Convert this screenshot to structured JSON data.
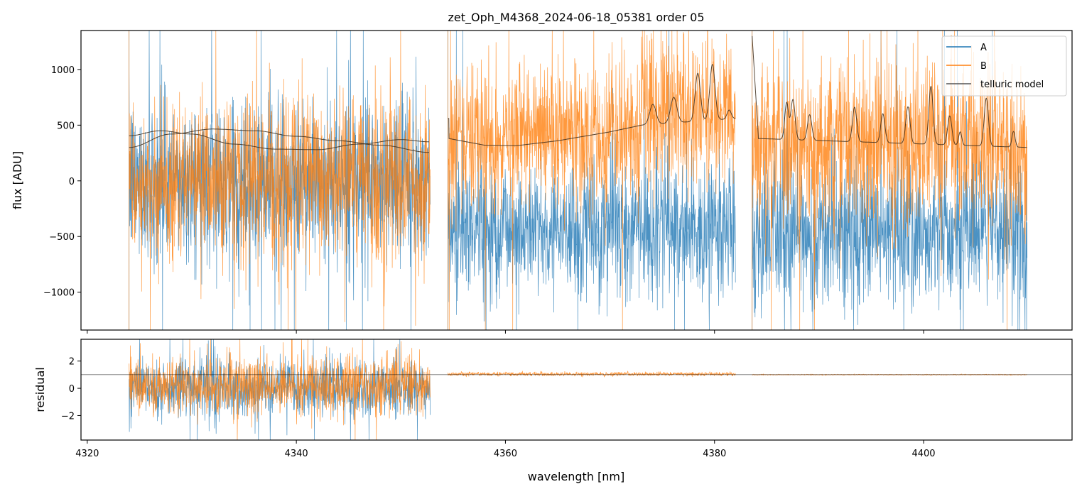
{
  "chart_data": [
    {
      "type": "line",
      "panel": "flux",
      "title": "zet_Oph_M4368_2024-06-18_05381  order 05",
      "xlabel": "",
      "ylabel": "flux [ADU]",
      "xlim": [
        4319.4,
        4414.2
      ],
      "ylim": [
        -1340,
        1350
      ],
      "xticks": [
        4320,
        4340,
        4360,
        4380,
        4400
      ],
      "yticks": [
        1000,
        500,
        0,
        -500,
        -1000
      ],
      "ytick_labels": [
        "1000",
        "500",
        "0",
        "−500",
        "−1000"
      ],
      "grid": false,
      "legend": {
        "placement": "top-right",
        "entries": [
          "A",
          "B",
          "telluric model"
        ]
      },
      "colors": {
        "A": "#1f77b4",
        "B": "#ff7f0e",
        "telluric model": "#3a2a1a"
      },
      "segments": [
        [
          4324.0,
          4352.8
        ],
        [
          4354.5,
          4382.0
        ],
        [
          4383.6,
          4409.9
        ]
      ],
      "series_summary": [
        {
          "name": "A",
          "segment_means": [
            0,
            -420,
            -480
          ],
          "segment_sigma": [
            360,
            320,
            330
          ]
        },
        {
          "name": "B",
          "segment_means": [
            0,
            380,
            330
          ],
          "segment_sigma": [
            370,
            330,
            380
          ]
        }
      ],
      "telluric_model": [
        {
          "segment": 0,
          "curve": "A",
          "x": [
            4324,
            4328,
            4332,
            4336,
            4340,
            4344,
            4348,
            4352.8
          ],
          "y": [
            300,
            420,
            465,
            450,
            400,
            360,
            320,
            255
          ]
        },
        {
          "segment": 0,
          "curve": "B",
          "x": [
            4324,
            4327,
            4330,
            4334,
            4338,
            4342,
            4346,
            4350,
            4352.8
          ],
          "y": [
            405,
            450,
            420,
            330,
            285,
            280,
            330,
            370,
            350
          ]
        },
        {
          "segment": 1,
          "baseline_x": [
            4354.6,
            4358,
            4361,
            4365,
            4370,
            4373,
            4382
          ],
          "baseline_y": [
            380,
            320,
            315,
            360,
            440,
            500,
            560
          ],
          "peaks": [
            [
              4374.1,
              180,
              0.3
            ],
            [
              4376.1,
              230,
              0.3
            ],
            [
              4378.4,
              430,
              0.25
            ],
            [
              4379.8,
              500,
              0.25
            ],
            [
              4381.4,
              80,
              0.2
            ]
          ]
        },
        {
          "segment": 2,
          "baseline_x": [
            4383.6,
            4384.2,
            4409.9
          ],
          "baseline_y": [
            1300,
            380,
            300
          ],
          "peaks": [
            [
              4386.9,
              330,
              0.18
            ],
            [
              4387.5,
              360,
              0.2
            ],
            [
              4389.1,
              230,
              0.2
            ],
            [
              4393.4,
              310,
              0.2
            ],
            [
              4396.1,
              260,
              0.2
            ],
            [
              4398.5,
              330,
              0.2
            ],
            [
              4400.7,
              520,
              0.2
            ],
            [
              4402.5,
              260,
              0.2
            ],
            [
              4403.5,
              120,
              0.15
            ],
            [
              4406.0,
              430,
              0.2
            ],
            [
              4408.6,
              140,
              0.15
            ]
          ]
        }
      ]
    },
    {
      "type": "line",
      "panel": "residual",
      "xlabel": "wavelength [nm]",
      "ylabel": "residual",
      "xlim": [
        4319.4,
        4414.2
      ],
      "ylim": [
        -3.8,
        3.6
      ],
      "xticks": [
        4320,
        4340,
        4360,
        4380,
        4400
      ],
      "yticks": [
        2,
        0,
        -2
      ],
      "ytick_labels": [
        "2",
        "0",
        "−2"
      ],
      "reference_line": 1,
      "series_summary": [
        {
          "name": "A",
          "segment_means": [
            0,
            null,
            null
          ],
          "segment_sigma": [
            1.1,
            null,
            null
          ]
        },
        {
          "name": "B",
          "segment_means": [
            0.2,
            1.05,
            1.0
          ],
          "segment_sigma": [
            1.1,
            0.07,
            0.015
          ]
        }
      ]
    }
  ]
}
